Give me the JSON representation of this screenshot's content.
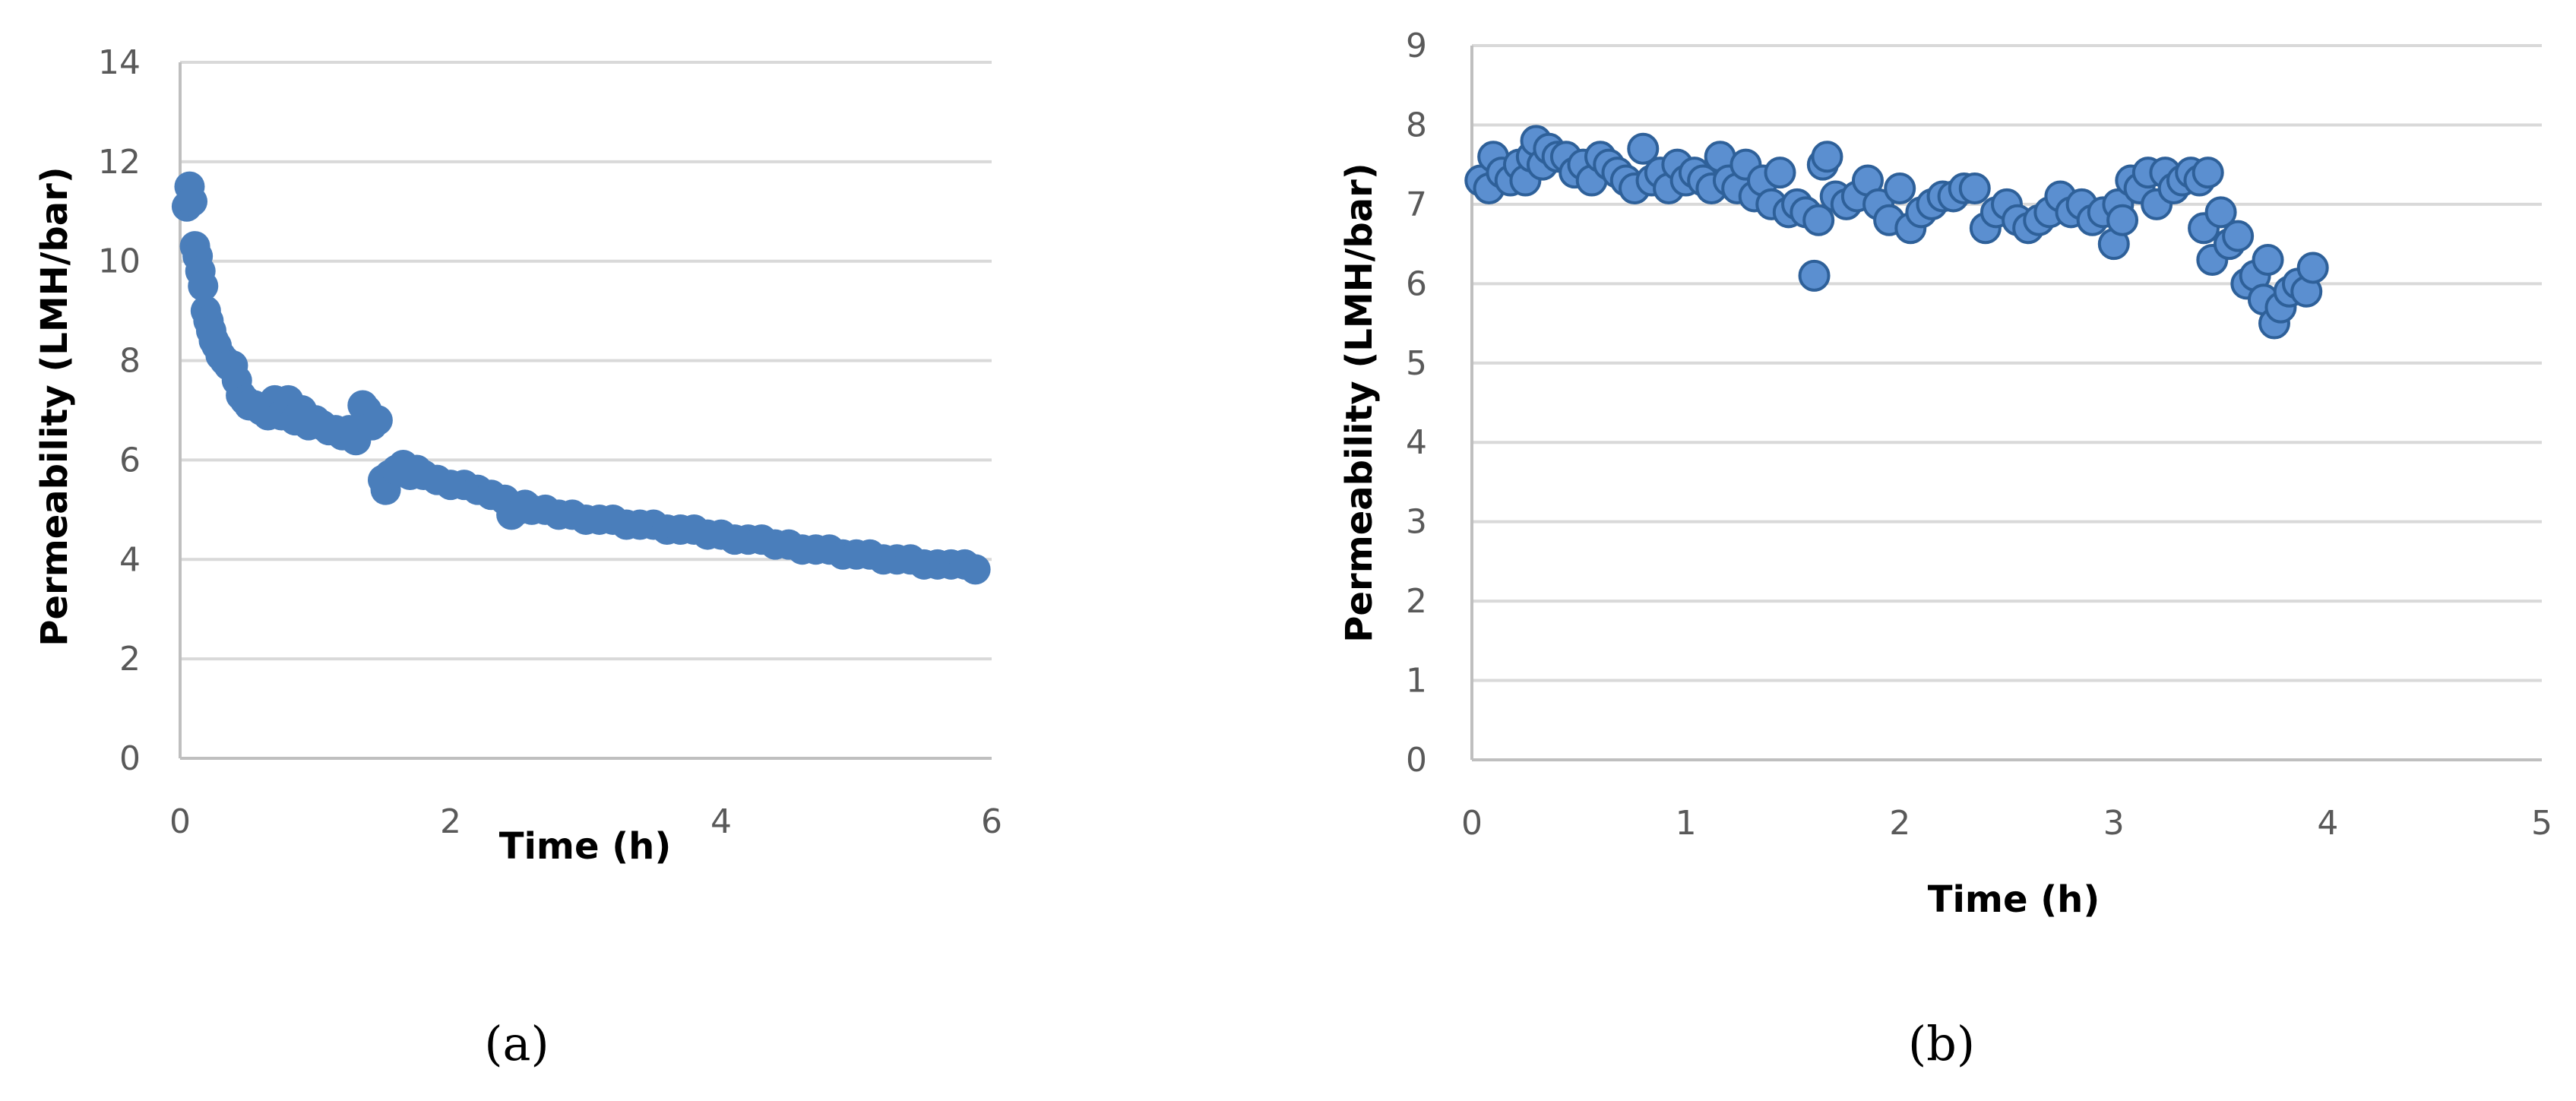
{
  "chart_data": [
    {
      "type": "scatter",
      "panel_label": "(a)",
      "xlabel": "Time (h)",
      "ylabel": "Permeability (LMH/bar)",
      "xlim": [
        0,
        6
      ],
      "ylim": [
        0,
        14
      ],
      "xticks": [
        "0",
        "2",
        "4",
        "6"
      ],
      "yticks": [
        "0",
        "2",
        "4",
        "6",
        "8",
        "10",
        "12",
        "14"
      ],
      "grid": true,
      "legend": "none",
      "marker_color": "#4a7ebb",
      "series": [
        {
          "x": [
            0.05,
            0.07,
            0.09,
            0.11,
            0.13,
            0.15,
            0.17,
            0.19,
            0.21,
            0.23,
            0.25,
            0.27,
            0.3,
            0.33,
            0.36,
            0.39,
            0.42,
            0.45,
            0.48,
            0.51,
            0.55,
            0.6,
            0.65,
            0.7,
            0.75,
            0.8,
            0.85,
            0.9,
            0.95,
            1.0,
            1.05,
            1.1,
            1.15,
            1.2,
            1.25,
            1.3,
            1.35,
            1.38,
            1.42,
            1.46,
            1.5,
            1.52,
            1.55,
            1.6,
            1.65,
            1.7,
            1.75,
            1.8,
            1.9,
            2.0,
            2.1,
            2.2,
            2.3,
            2.4,
            2.45,
            2.5,
            2.55,
            2.6,
            2.7,
            2.8,
            2.9,
            3.0,
            3.1,
            3.2,
            3.3,
            3.4,
            3.5,
            3.6,
            3.7,
            3.8,
            3.9,
            4.0,
            4.1,
            4.2,
            4.3,
            4.4,
            4.5,
            4.6,
            4.7,
            4.8,
            4.9,
            5.0,
            5.1,
            5.2,
            5.3,
            5.4,
            5.5,
            5.6,
            5.7,
            5.8,
            5.88
          ],
          "y": [
            11.1,
            11.5,
            11.2,
            10.3,
            10.1,
            9.8,
            9.5,
            9.0,
            8.8,
            8.6,
            8.4,
            8.3,
            8.1,
            8.0,
            7.9,
            7.9,
            7.6,
            7.3,
            7.2,
            7.1,
            7.1,
            7.0,
            6.9,
            7.2,
            6.9,
            7.2,
            6.8,
            7.0,
            6.7,
            6.8,
            6.7,
            6.6,
            6.6,
            6.5,
            6.6,
            6.4,
            7.1,
            7.0,
            6.7,
            6.8,
            5.6,
            5.4,
            5.7,
            5.8,
            5.9,
            5.7,
            5.8,
            5.7,
            5.6,
            5.5,
            5.5,
            5.4,
            5.3,
            5.2,
            4.9,
            5.0,
            5.1,
            5.0,
            5.0,
            4.9,
            4.9,
            4.8,
            4.8,
            4.8,
            4.7,
            4.7,
            4.7,
            4.6,
            4.6,
            4.6,
            4.5,
            4.5,
            4.4,
            4.4,
            4.4,
            4.3,
            4.3,
            4.2,
            4.2,
            4.2,
            4.1,
            4.1,
            4.1,
            4.0,
            4.0,
            4.0,
            3.9,
            3.9,
            3.9,
            3.9,
            3.8
          ]
        }
      ]
    },
    {
      "type": "scatter",
      "panel_label": "(b)",
      "xlabel": "Time (h)",
      "ylabel": "Permeability (LMH/bar)",
      "xlim": [
        0,
        5
      ],
      "ylim": [
        0,
        9
      ],
      "xticks": [
        "0",
        "1",
        "2",
        "3",
        "4",
        "5"
      ],
      "yticks": [
        "0",
        "1",
        "2",
        "3",
        "4",
        "5",
        "6",
        "7",
        "8",
        "9"
      ],
      "grid": true,
      "legend": "none",
      "marker_color": "#5b8fd0",
      "marker_edge": "#2e6099",
      "series": [
        {
          "x": [
            0.04,
            0.08,
            0.1,
            0.14,
            0.18,
            0.22,
            0.25,
            0.28,
            0.3,
            0.33,
            0.36,
            0.4,
            0.44,
            0.48,
            0.52,
            0.56,
            0.6,
            0.64,
            0.68,
            0.72,
            0.76,
            0.8,
            0.84,
            0.88,
            0.92,
            0.96,
            1.0,
            1.04,
            1.08,
            1.12,
            1.16,
            1.2,
            1.24,
            1.28,
            1.32,
            1.36,
            1.4,
            1.44,
            1.48,
            1.52,
            1.56,
            1.6,
            1.62,
            1.64,
            1.66,
            1.7,
            1.75,
            1.8,
            1.85,
            1.9,
            1.95,
            2.0,
            2.05,
            2.1,
            2.15,
            2.2,
            2.25,
            2.3,
            2.35,
            2.4,
            2.45,
            2.5,
            2.55,
            2.6,
            2.65,
            2.7,
            2.75,
            2.8,
            2.85,
            2.9,
            2.95,
            3.0,
            3.02,
            3.04,
            3.08,
            3.12,
            3.16,
            3.2,
            3.24,
            3.28,
            3.32,
            3.36,
            3.4,
            3.42,
            3.44,
            3.46,
            3.5,
            3.54,
            3.58,
            3.62,
            3.66,
            3.7,
            3.72,
            3.75,
            3.78,
            3.82,
            3.86,
            3.9,
            3.93
          ],
          "y": [
            7.3,
            7.2,
            7.6,
            7.4,
            7.3,
            7.5,
            7.3,
            7.6,
            7.8,
            7.5,
            7.7,
            7.6,
            7.6,
            7.4,
            7.5,
            7.3,
            7.6,
            7.5,
            7.4,
            7.3,
            7.2,
            7.7,
            7.3,
            7.4,
            7.2,
            7.5,
            7.3,
            7.4,
            7.3,
            7.2,
            7.6,
            7.3,
            7.2,
            7.5,
            7.1,
            7.3,
            7.0,
            7.4,
            6.9,
            7.0,
            6.9,
            6.1,
            6.8,
            7.5,
            7.6,
            7.1,
            7.0,
            7.1,
            7.3,
            7.0,
            6.8,
            7.2,
            6.7,
            6.9,
            7.0,
            7.1,
            7.1,
            7.2,
            7.2,
            6.7,
            6.9,
            7.0,
            6.8,
            6.7,
            6.8,
            6.9,
            7.1,
            6.9,
            7.0,
            6.8,
            6.9,
            6.5,
            7.0,
            6.8,
            7.3,
            7.2,
            7.4,
            7.0,
            7.4,
            7.2,
            7.3,
            7.4,
            7.3,
            6.7,
            7.4,
            6.3,
            6.9,
            6.5,
            6.6,
            6.0,
            6.1,
            5.8,
            6.3,
            5.5,
            5.7,
            5.9,
            6.0,
            5.9,
            6.2
          ]
        }
      ]
    }
  ]
}
